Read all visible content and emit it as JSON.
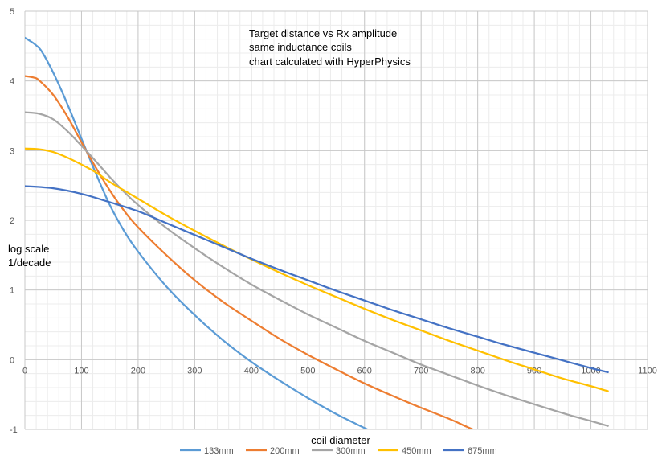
{
  "chart_data": {
    "type": "line",
    "title": "",
    "xlabel": "coil diameter",
    "ylabel": "",
    "xlim": [
      0,
      1100
    ],
    "ylim": [
      -1,
      5
    ],
    "x_ticks": [
      0,
      100,
      200,
      300,
      400,
      500,
      600,
      700,
      800,
      900,
      1000,
      1100
    ],
    "y_ticks": [
      -1,
      0,
      1,
      2,
      3,
      4,
      5
    ],
    "minor_x_step": 20,
    "minor_y_step": 0.2,
    "grid": true,
    "legend_position": "bottom",
    "annotations": [
      "Target distance vs Rx amplitude",
      "same inductance coils",
      "chart calculated with HyperPhysics"
    ],
    "y_annotation": [
      "log scale",
      "1/decade"
    ],
    "series": [
      {
        "name": "133mm",
        "color": "#5B9BD5",
        "points": [
          [
            0,
            4.62
          ],
          [
            10,
            4.57
          ],
          [
            20,
            4.51
          ],
          [
            30,
            4.42
          ],
          [
            50,
            4.12
          ],
          [
            75,
            3.67
          ],
          [
            100,
            3.17
          ],
          [
            125,
            2.68
          ],
          [
            150,
            2.22
          ],
          [
            175,
            1.85
          ],
          [
            200,
            1.55
          ],
          [
            250,
            1.05
          ],
          [
            300,
            0.64
          ],
          [
            350,
            0.28
          ],
          [
            400,
            -0.03
          ],
          [
            450,
            -0.3
          ],
          [
            500,
            -0.55
          ],
          [
            550,
            -0.78
          ],
          [
            600,
            -0.98
          ],
          [
            610,
            -1.02
          ]
        ]
      },
      {
        "name": "200mm",
        "color": "#ED7D31",
        "points": [
          [
            0,
            4.07
          ],
          [
            15,
            4.05
          ],
          [
            25,
            4.01
          ],
          [
            50,
            3.8
          ],
          [
            75,
            3.49
          ],
          [
            100,
            3.12
          ],
          [
            125,
            2.76
          ],
          [
            150,
            2.43
          ],
          [
            175,
            2.14
          ],
          [
            200,
            1.9
          ],
          [
            250,
            1.5
          ],
          [
            300,
            1.14
          ],
          [
            350,
            0.83
          ],
          [
            400,
            0.56
          ],
          [
            450,
            0.3
          ],
          [
            500,
            0.07
          ],
          [
            550,
            -0.14
          ],
          [
            600,
            -0.34
          ],
          [
            650,
            -0.52
          ],
          [
            700,
            -0.69
          ],
          [
            750,
            -0.85
          ],
          [
            780,
            -0.96
          ],
          [
            800,
            -1.03
          ]
        ]
      },
      {
        "name": "300mm",
        "color": "#A5A5A5",
        "points": [
          [
            0,
            3.55
          ],
          [
            25,
            3.53
          ],
          [
            50,
            3.45
          ],
          [
            75,
            3.28
          ],
          [
            100,
            3.07
          ],
          [
            125,
            2.85
          ],
          [
            150,
            2.62
          ],
          [
            175,
            2.41
          ],
          [
            200,
            2.22
          ],
          [
            250,
            1.89
          ],
          [
            300,
            1.6
          ],
          [
            350,
            1.33
          ],
          [
            400,
            1.08
          ],
          [
            450,
            0.86
          ],
          [
            500,
            0.65
          ],
          [
            550,
            0.46
          ],
          [
            600,
            0.27
          ],
          [
            650,
            0.1
          ],
          [
            700,
            -0.07
          ],
          [
            750,
            -0.22
          ],
          [
            800,
            -0.37
          ],
          [
            850,
            -0.51
          ],
          [
            900,
            -0.64
          ],
          [
            960,
            -0.79
          ],
          [
            1000,
            -0.88
          ],
          [
            1030,
            -0.95
          ]
        ]
      },
      {
        "name": "450mm",
        "color": "#FFC000",
        "points": [
          [
            0,
            3.03
          ],
          [
            25,
            3.02
          ],
          [
            50,
            2.98
          ],
          [
            75,
            2.9
          ],
          [
            100,
            2.8
          ],
          [
            125,
            2.69
          ],
          [
            150,
            2.55
          ],
          [
            175,
            2.43
          ],
          [
            200,
            2.31
          ],
          [
            250,
            2.07
          ],
          [
            300,
            1.85
          ],
          [
            350,
            1.64
          ],
          [
            400,
            1.44
          ],
          [
            450,
            1.25
          ],
          [
            500,
            1.07
          ],
          [
            550,
            0.9
          ],
          [
            600,
            0.73
          ],
          [
            650,
            0.57
          ],
          [
            700,
            0.42
          ],
          [
            750,
            0.27
          ],
          [
            800,
            0.13
          ],
          [
            850,
            -0.01
          ],
          [
            900,
            -0.14
          ],
          [
            950,
            -0.27
          ],
          [
            1000,
            -0.38
          ],
          [
            1025,
            -0.44
          ],
          [
            1030,
            -0.45
          ]
        ]
      },
      {
        "name": "675mm",
        "color": "#4472C4",
        "points": [
          [
            0,
            2.49
          ],
          [
            50,
            2.46
          ],
          [
            100,
            2.38
          ],
          [
            150,
            2.26
          ],
          [
            200,
            2.13
          ],
          [
            250,
            1.96
          ],
          [
            300,
            1.79
          ],
          [
            350,
            1.62
          ],
          [
            400,
            1.45
          ],
          [
            450,
            1.29
          ],
          [
            500,
            1.14
          ],
          [
            550,
            0.99
          ],
          [
            600,
            0.85
          ],
          [
            650,
            0.71
          ],
          [
            700,
            0.58
          ],
          [
            750,
            0.45
          ],
          [
            800,
            0.33
          ],
          [
            850,
            0.21
          ],
          [
            900,
            0.1
          ],
          [
            950,
            -0.01
          ],
          [
            1000,
            -0.12
          ],
          [
            1030,
            -0.18
          ]
        ]
      }
    ]
  }
}
